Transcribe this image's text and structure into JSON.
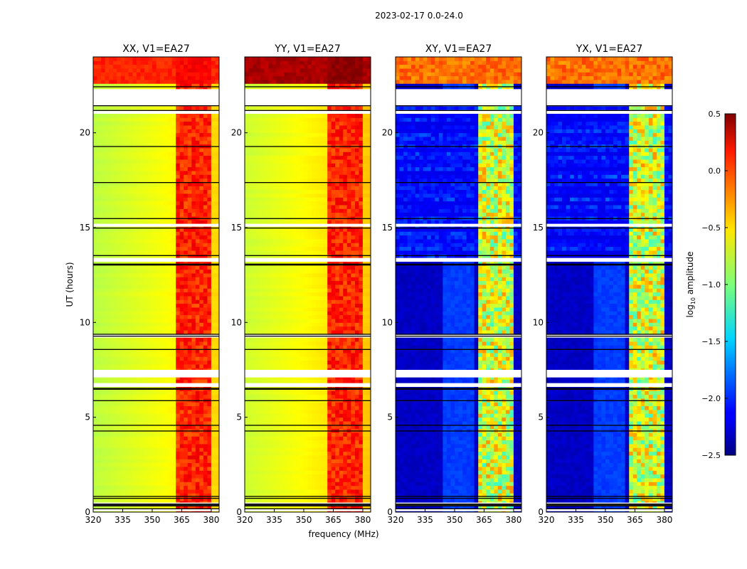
{
  "chart_data": {
    "type": "heatmap",
    "title": "2023-02-17 0.0-24.0",
    "xlabel": "frequency (MHz)",
    "ylabel": "UT (hours)",
    "xlim": [
      320,
      384
    ],
    "ylim": [
      0,
      24
    ],
    "xticks": [
      "320",
      "335",
      "350",
      "365",
      "380"
    ],
    "xtick_values": [
      320,
      335,
      350,
      365,
      380
    ],
    "yticks": [
      "0",
      "5",
      "10",
      "15",
      "20"
    ],
    "ytick_values": [
      0,
      5,
      10,
      15,
      20
    ],
    "colorbar": {
      "label": "log10 amplitude",
      "label_main": "log",
      "label_sub": "10",
      "label_rest": " amplitude",
      "colormap": "jet",
      "range": [
        -2.5,
        0.5
      ],
      "ticks": [
        "0.5",
        "0.0",
        "−0.5",
        "−1.0",
        "−1.5",
        "−2.0",
        "−2.5"
      ],
      "tick_values": [
        0.5,
        0.0,
        -0.5,
        -1.0,
        -1.5,
        -2.0,
        -2.5
      ]
    },
    "panels": [
      {
        "title": "XX, V1=EA27",
        "kind": "parallel",
        "base": -0.65,
        "top_level": -0.05
      },
      {
        "title": "YY, V1=EA27",
        "kind": "parallel",
        "base": -0.6,
        "top_level": 0.3
      },
      {
        "title": "XY, V1=EA27",
        "kind": "cross",
        "base": -2.35,
        "top_level": -0.35
      },
      {
        "title": "YX, V1=EA27",
        "kind": "cross",
        "base": -2.35,
        "top_level": -0.35
      }
    ],
    "rfi_band_mhz": [
      362,
      380
    ],
    "flagged_hours_white": [
      [
        21.4,
        22.3
      ],
      [
        13.2,
        13.4
      ],
      [
        7.1,
        7.5
      ],
      [
        0.3,
        0.5
      ],
      [
        0.05,
        0.15
      ],
      [
        21.0,
        21.2
      ],
      [
        15.05,
        15.2
      ],
      [
        6.6,
        6.8
      ],
      [
        9.2,
        9.35
      ]
    ],
    "flagged_hours_black": [
      22.45,
      21.45,
      21.2,
      19.3,
      17.4,
      15.5,
      15.0,
      13.55,
      13.1,
      13.05,
      9.4,
      9.3,
      8.6,
      6.55,
      6.5,
      5.9,
      4.6,
      4.3,
      0.85,
      0.75,
      0.45,
      0.4,
      0.35,
      0.2
    ]
  }
}
